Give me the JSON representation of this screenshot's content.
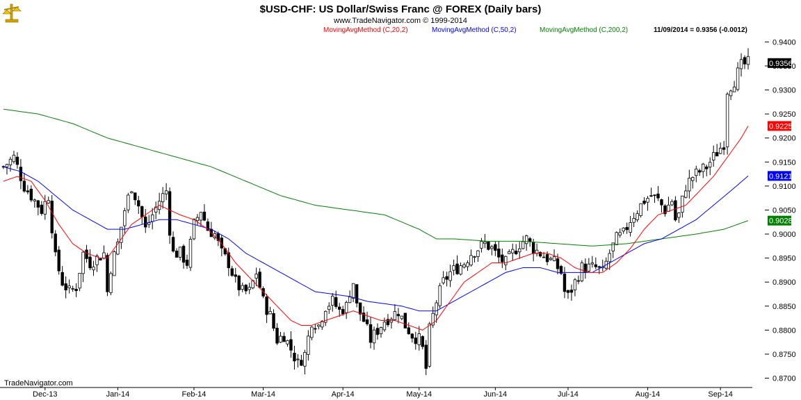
{
  "header": {
    "title": "$USD-CHF:  US Dollar/Swiss Franc @ FOREX  (Daily bars)",
    "copyright": "www.TradeNavigator.com © 1999-2014",
    "watermark": "TradeNavigator.com",
    "logo_icon": "gold-scale-logo-icon"
  },
  "legend": [
    {
      "label": "MovingAvgMethod (C,20,2)",
      "color": "#ff0000"
    },
    {
      "label": "MovingAvgMethod (C,50,2)",
      "color": "#0000ff"
    },
    {
      "label": "MovingAvgMethod (C,200,2)",
      "color": "#008000"
    }
  ],
  "last_quote": "11/09/2014 = 0.9356 (-0.0012)",
  "chart_data": {
    "type": "candlestick",
    "y_range": [
      0.8695,
      0.9415
    ],
    "y_ticks": [
      "0.9400",
      "0.9350",
      "0.9300",
      "0.9250",
      "0.9200",
      "0.9150",
      "0.9100",
      "0.9050",
      "0.9000",
      "0.8950",
      "0.8900",
      "0.8850",
      "0.8800",
      "0.8750",
      "0.8700"
    ],
    "x_ticks": [
      {
        "label": "Dec-13",
        "index": 12
      },
      {
        "label": "Jan-14",
        "index": 33
      },
      {
        "label": "Feb-14",
        "index": 55
      },
      {
        "label": "Mar-14",
        "index": 75
      },
      {
        "label": "Apr-14",
        "index": 98
      },
      {
        "label": "May-14",
        "index": 120
      },
      {
        "label": "Jun-14",
        "index": 142
      },
      {
        "label": "Jul-14",
        "index": 163
      },
      {
        "label": "Aug-14",
        "index": 186
      },
      {
        "label": "Sep-14",
        "index": 207
      }
    ],
    "price_tags": [
      {
        "value": "0.9356",
        "bg": "#000000",
        "fg": "#ffffff"
      },
      {
        "value": "0.9225",
        "bg": "#ff0000",
        "fg": "#ffffff"
      },
      {
        "value": "0.9121",
        "bg": "#0000ff",
        "fg": "#ffffff"
      },
      {
        "value": "0.9028",
        "bg": "#008000",
        "fg": "#ffffff"
      }
    ],
    "close_keypoints": [
      [
        0,
        0.914
      ],
      [
        3,
        0.916
      ],
      [
        6,
        0.91
      ],
      [
        9,
        0.907
      ],
      [
        11,
        0.905
      ],
      [
        13,
        0.908
      ],
      [
        15,
        0.895
      ],
      [
        17,
        0.89
      ],
      [
        19,
        0.888
      ],
      [
        21,
        0.889
      ],
      [
        23,
        0.896
      ],
      [
        25,
        0.894
      ],
      [
        27,
        0.895
      ],
      [
        29,
        0.896
      ],
      [
        30,
        0.888
      ],
      [
        31,
        0.893
      ],
      [
        33,
        0.898
      ],
      [
        35,
        0.905
      ],
      [
        37,
        0.91
      ],
      [
        39,
        0.906
      ],
      [
        41,
        0.901
      ],
      [
        43,
        0.904
      ],
      [
        45,
        0.907
      ],
      [
        47,
        0.909
      ],
      [
        48,
        0.901
      ],
      [
        49,
        0.896
      ],
      [
        51,
        0.896
      ],
      [
        53,
        0.894
      ],
      [
        55,
        0.902
      ],
      [
        57,
        0.905
      ],
      [
        59,
        0.901
      ],
      [
        61,
        0.9
      ],
      [
        63,
        0.896
      ],
      [
        65,
        0.894
      ],
      [
        67,
        0.89
      ],
      [
        69,
        0.888
      ],
      [
        71,
        0.888
      ],
      [
        73,
        0.892
      ],
      [
        75,
        0.886
      ],
      [
        77,
        0.883
      ],
      [
        79,
        0.878
      ],
      [
        81,
        0.879
      ],
      [
        83,
        0.876
      ],
      [
        85,
        0.873
      ],
      [
        87,
        0.875
      ],
      [
        89,
        0.882
      ],
      [
        91,
        0.881
      ],
      [
        93,
        0.885
      ],
      [
        95,
        0.886
      ],
      [
        97,
        0.884
      ],
      [
        99,
        0.885
      ],
      [
        100,
        0.888
      ],
      [
        101,
        0.89
      ],
      [
        102,
        0.885
      ],
      [
        104,
        0.882
      ],
      [
        106,
        0.878
      ],
      [
        108,
        0.88
      ],
      [
        110,
        0.882
      ],
      [
        112,
        0.883
      ],
      [
        114,
        0.884
      ],
      [
        116,
        0.881
      ],
      [
        118,
        0.879
      ],
      [
        120,
        0.878
      ],
      [
        121,
        0.876
      ],
      [
        122,
        0.872
      ],
      [
        123,
        0.88
      ],
      [
        125,
        0.886
      ],
      [
        127,
        0.89
      ],
      [
        129,
        0.892
      ],
      [
        131,
        0.893
      ],
      [
        133,
        0.894
      ],
      [
        135,
        0.896
      ],
      [
        137,
        0.897
      ],
      [
        139,
        0.898
      ],
      [
        141,
        0.897
      ],
      [
        143,
        0.895
      ],
      [
        145,
        0.894
      ],
      [
        147,
        0.896
      ],
      [
        149,
        0.898
      ],
      [
        151,
        0.899
      ],
      [
        153,
        0.897
      ],
      [
        155,
        0.896
      ],
      [
        157,
        0.895
      ],
      [
        159,
        0.894
      ],
      [
        161,
        0.892
      ],
      [
        162,
        0.888
      ],
      [
        163,
        0.887
      ],
      [
        165,
        0.89
      ],
      [
        167,
        0.893
      ],
      [
        169,
        0.893
      ],
      [
        171,
        0.893
      ],
      [
        173,
        0.892
      ],
      [
        175,
        0.896
      ],
      [
        177,
        0.899
      ],
      [
        179,
        0.9
      ],
      [
        181,
        0.903
      ],
      [
        183,
        0.905
      ],
      [
        185,
        0.907
      ],
      [
        187,
        0.908
      ],
      [
        189,
        0.907
      ],
      [
        191,
        0.905
      ],
      [
        193,
        0.907
      ],
      [
        194,
        0.903
      ],
      [
        195,
        0.904
      ],
      [
        197,
        0.91
      ],
      [
        199,
        0.912
      ],
      [
        201,
        0.913
      ],
      [
        203,
        0.914
      ],
      [
        205,
        0.916
      ],
      [
        207,
        0.918
      ],
      [
        208,
        0.919
      ],
      [
        209,
        0.93
      ],
      [
        211,
        0.932
      ],
      [
        213,
        0.935
      ],
      [
        215,
        0.9356
      ]
    ],
    "ma20_keypoints": [
      [
        0,
        0.911
      ],
      [
        4,
        0.912
      ],
      [
        8,
        0.911
      ],
      [
        12,
        0.907
      ],
      [
        16,
        0.902
      ],
      [
        20,
        0.898
      ],
      [
        24,
        0.896
      ],
      [
        28,
        0.895
      ],
      [
        30,
        0.895
      ],
      [
        33,
        0.898
      ],
      [
        37,
        0.902
      ],
      [
        41,
        0.904
      ],
      [
        45,
        0.906
      ],
      [
        48,
        0.905
      ],
      [
        51,
        0.904
      ],
      [
        55,
        0.903
      ],
      [
        59,
        0.901
      ],
      [
        63,
        0.898
      ],
      [
        67,
        0.894
      ],
      [
        71,
        0.891
      ],
      [
        75,
        0.888
      ],
      [
        79,
        0.885
      ],
      [
        83,
        0.882
      ],
      [
        86,
        0.881
      ],
      [
        89,
        0.881
      ],
      [
        93,
        0.882
      ],
      [
        97,
        0.883
      ],
      [
        101,
        0.884
      ],
      [
        105,
        0.883
      ],
      [
        109,
        0.882
      ],
      [
        113,
        0.882
      ],
      [
        117,
        0.881
      ],
      [
        121,
        0.88
      ],
      [
        125,
        0.882
      ],
      [
        129,
        0.886
      ],
      [
        133,
        0.89
      ],
      [
        137,
        0.892
      ],
      [
        141,
        0.894
      ],
      [
        145,
        0.894
      ],
      [
        149,
        0.895
      ],
      [
        153,
        0.896
      ],
      [
        157,
        0.896
      ],
      [
        161,
        0.895
      ],
      [
        165,
        0.893
      ],
      [
        169,
        0.892
      ],
      [
        173,
        0.892
      ],
      [
        177,
        0.894
      ],
      [
        181,
        0.897
      ],
      [
        185,
        0.901
      ],
      [
        189,
        0.904
      ],
      [
        193,
        0.905
      ],
      [
        197,
        0.906
      ],
      [
        201,
        0.909
      ],
      [
        205,
        0.912
      ],
      [
        209,
        0.916
      ],
      [
        213,
        0.92
      ],
      [
        215,
        0.9225
      ]
    ],
    "ma50_keypoints": [
      [
        0,
        0.914
      ],
      [
        5,
        0.913
      ],
      [
        10,
        0.911
      ],
      [
        15,
        0.908
      ],
      [
        20,
        0.905
      ],
      [
        25,
        0.903
      ],
      [
        30,
        0.901
      ],
      [
        35,
        0.901
      ],
      [
        40,
        0.902
      ],
      [
        45,
        0.903
      ],
      [
        50,
        0.903
      ],
      [
        55,
        0.902
      ],
      [
        60,
        0.901
      ],
      [
        65,
        0.899
      ],
      [
        70,
        0.896
      ],
      [
        75,
        0.894
      ],
      [
        80,
        0.892
      ],
      [
        85,
        0.89
      ],
      [
        90,
        0.888
      ],
      [
        95,
        0.8875
      ],
      [
        100,
        0.887
      ],
      [
        105,
        0.886
      ],
      [
        110,
        0.8855
      ],
      [
        115,
        0.885
      ],
      [
        120,
        0.884
      ],
      [
        125,
        0.884
      ],
      [
        130,
        0.886
      ],
      [
        135,
        0.888
      ],
      [
        140,
        0.89
      ],
      [
        145,
        0.892
      ],
      [
        150,
        0.893
      ],
      [
        155,
        0.893
      ],
      [
        160,
        0.892
      ],
      [
        165,
        0.892
      ],
      [
        170,
        0.892
      ],
      [
        175,
        0.894
      ],
      [
        180,
        0.896
      ],
      [
        185,
        0.898
      ],
      [
        190,
        0.899
      ],
      [
        195,
        0.901
      ],
      [
        200,
        0.903
      ],
      [
        205,
        0.906
      ],
      [
        210,
        0.909
      ],
      [
        215,
        0.9121
      ]
    ],
    "ma200_keypoints": [
      [
        0,
        0.926
      ],
      [
        10,
        0.925
      ],
      [
        20,
        0.923
      ],
      [
        30,
        0.92
      ],
      [
        40,
        0.918
      ],
      [
        50,
        0.916
      ],
      [
        60,
        0.914
      ],
      [
        70,
        0.911
      ],
      [
        80,
        0.908
      ],
      [
        90,
        0.906
      ],
      [
        100,
        0.905
      ],
      [
        110,
        0.904
      ],
      [
        120,
        0.901
      ],
      [
        125,
        0.899
      ],
      [
        130,
        0.899
      ],
      [
        140,
        0.8985
      ],
      [
        150,
        0.8985
      ],
      [
        160,
        0.898
      ],
      [
        170,
        0.8975
      ],
      [
        180,
        0.898
      ],
      [
        190,
        0.899
      ],
      [
        200,
        0.9
      ],
      [
        208,
        0.901
      ],
      [
        215,
        0.9028
      ]
    ]
  }
}
